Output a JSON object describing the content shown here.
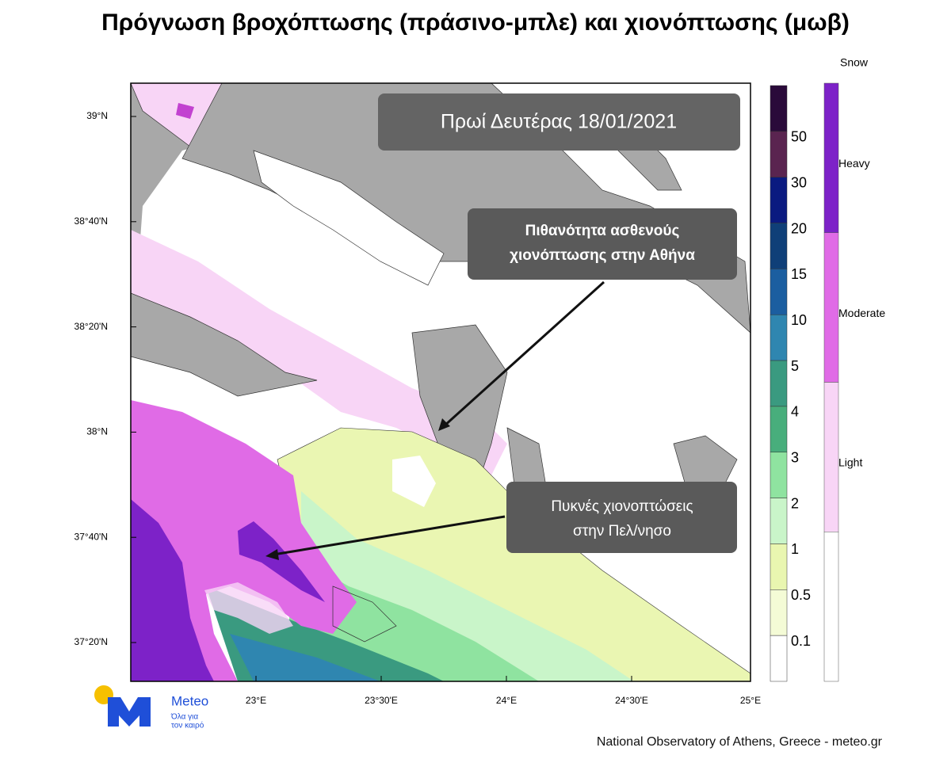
{
  "header": {
    "title": "Πρόγνωση βροχόπτωσης (πράσινο-μπλε) και χιονόπτωσης (μωβ)"
  },
  "map": {
    "date_box": "Πρωί Δευτέρας 18/01/2021",
    "annotations": [
      {
        "lines": [
          "Πιθανότητα ασθενούς",
          "χιονόπτωσης στην Αθήνα"
        ]
      },
      {
        "lines": [
          "Πυκνές χιονοπτώσεις",
          "στην Πελ/νησο"
        ]
      }
    ],
    "lat_labels": [
      "39°N",
      "38°40'N",
      "38°20'N",
      "38°N",
      "37°40'N",
      "37°20'N"
    ],
    "lon_labels": [
      "23°E",
      "23°30'E",
      "24°E",
      "24°30'E",
      "25°E"
    ]
  },
  "rain_scale": {
    "colors": [
      "#2a0a3a",
      "#5a2450",
      "#0a1a80",
      "#0f3f78",
      "#1b5ea0",
      "#2f86b0",
      "#3a9a80",
      "#48ae7c",
      "#8fe3a0",
      "#c9f5c9",
      "#e9f6b0",
      "#f4fbd6",
      "#ffffff"
    ],
    "labels": [
      "50",
      "30",
      "20",
      "15",
      "10",
      "5",
      "4",
      "3",
      "2",
      "1",
      "0.5",
      "0.1"
    ]
  },
  "snow_scale": {
    "title": "Snow",
    "labels": [
      "Heavy",
      "Moderate",
      "Light"
    ],
    "colors": [
      "#7d22c8",
      "#e06be6",
      "#f8d5f6",
      "#ffffff"
    ]
  },
  "logo": {
    "name": "Meteo",
    "slogan": [
      "Όλα για",
      "τον καιρό"
    ]
  },
  "footer": "National Observatory of Athens, Greece - meteo.gr"
}
